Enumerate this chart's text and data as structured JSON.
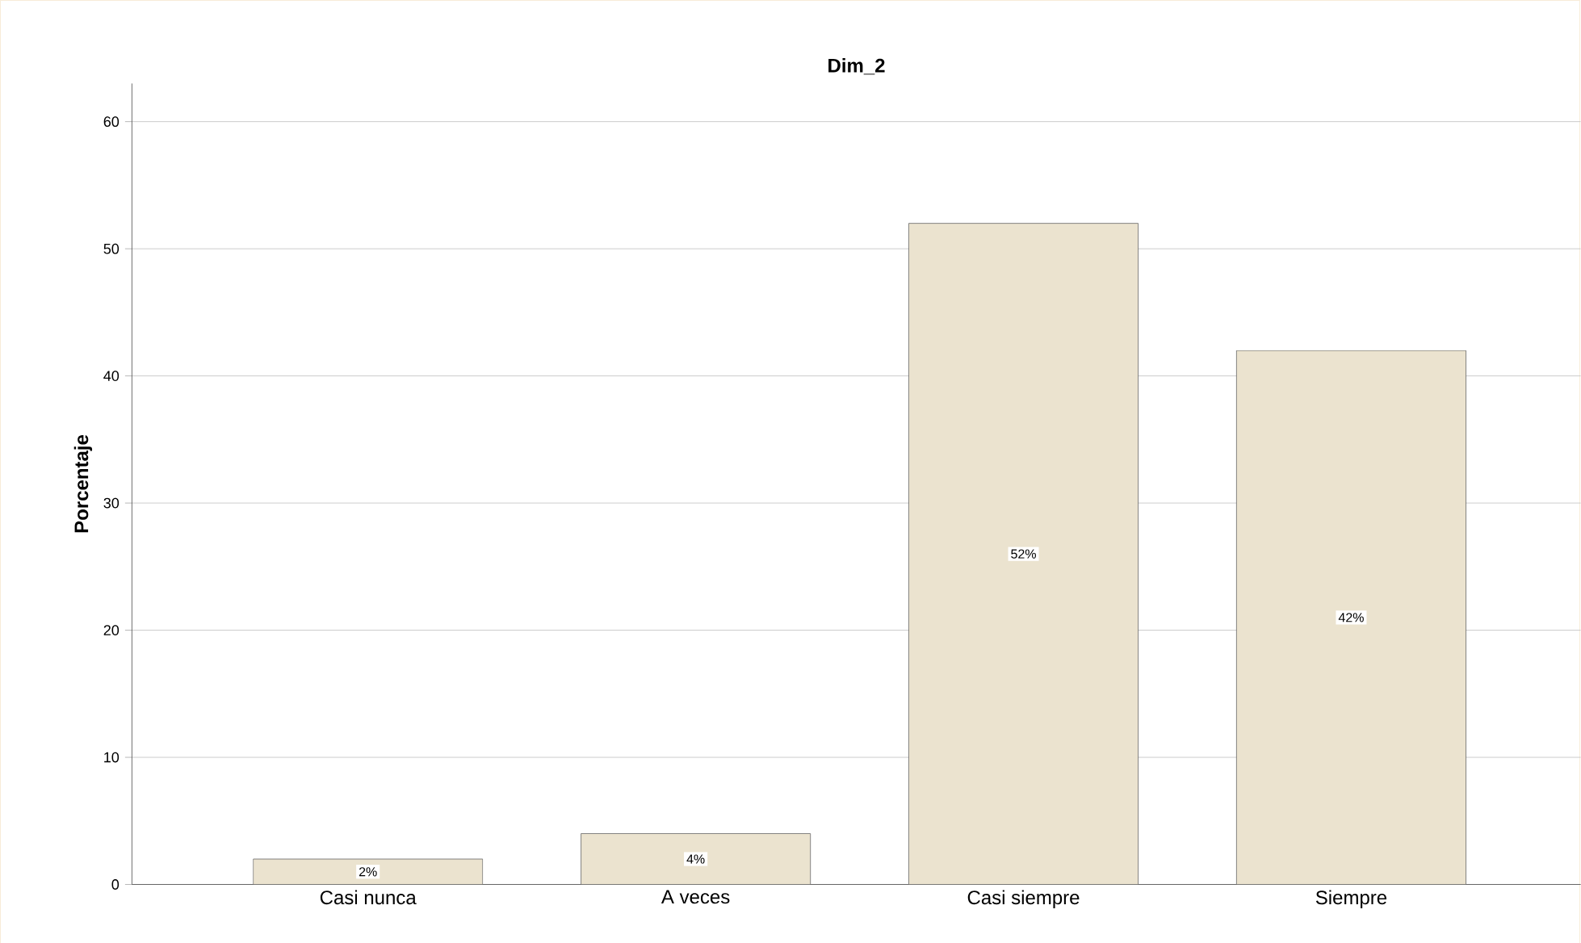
{
  "chart_data": {
    "type": "bar",
    "title": "Dim_2",
    "ylabel": "Porcentaje",
    "categories": [
      "Casi nunca",
      "A veces",
      "Casi siempre",
      "Siempre"
    ],
    "values": [
      2,
      4,
      52,
      42
    ],
    "value_labels": [
      "2%",
      "4%",
      "52%",
      "42%"
    ],
    "color": "#ebe3cf",
    "ylim": [
      0,
      63
    ],
    "yticks": [
      0,
      10,
      20,
      30,
      40,
      50,
      60
    ],
    "grid": "y"
  }
}
